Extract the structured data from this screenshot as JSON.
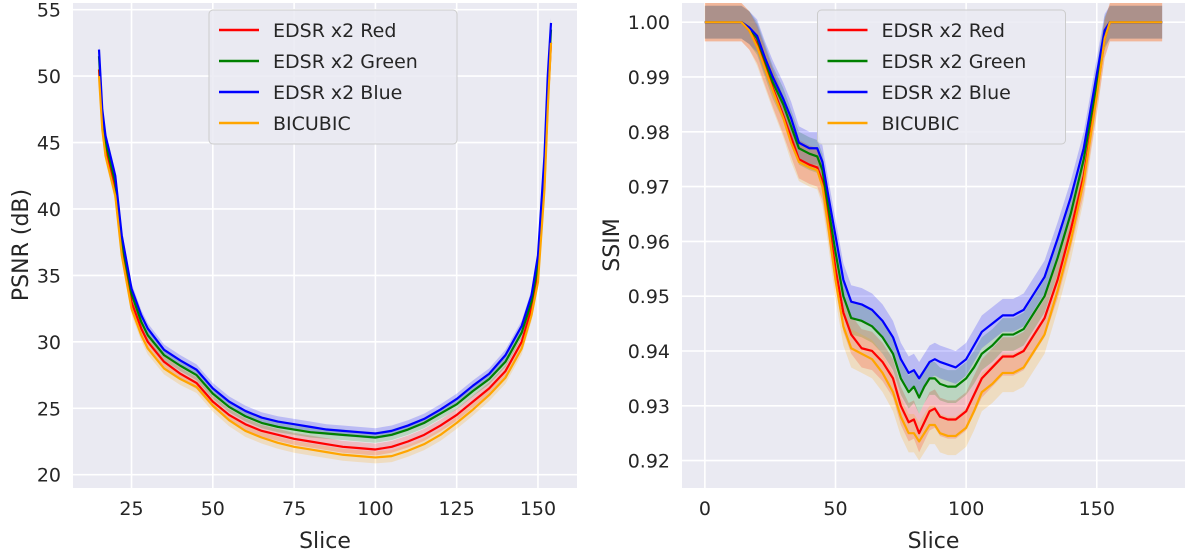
{
  "chart_data": [
    {
      "type": "line",
      "xlabel": "Slice",
      "ylabel": "PSNR (dB)",
      "xlim": [
        7,
        162
      ],
      "ylim": [
        19,
        55.5
      ],
      "xticks": [
        25,
        50,
        75,
        100,
        125,
        150
      ],
      "yticks": [
        20,
        25,
        30,
        35,
        40,
        45,
        50,
        55
      ],
      "grid": true,
      "legend_position": "top-center",
      "series": [
        {
          "name": "EDSR x2 Red",
          "color": "#ff0000",
          "band": 0.45,
          "x": [
            15,
            16,
            17,
            18,
            20,
            22,
            25,
            28,
            30,
            35,
            40,
            45,
            50,
            55,
            60,
            65,
            70,
            75,
            80,
            85,
            90,
            95,
            100,
            105,
            110,
            115,
            120,
            125,
            130,
            135,
            140,
            145,
            148,
            150,
            152,
            153,
            154
          ],
          "y": [
            50.5,
            46.5,
            44.5,
            43.5,
            41.5,
            37,
            33,
            31,
            30,
            28.5,
            27.6,
            26.9,
            25.5,
            24.5,
            23.8,
            23.3,
            23,
            22.7,
            22.5,
            22.3,
            22.1,
            22,
            21.9,
            22.1,
            22.5,
            23,
            23.7,
            24.5,
            25.5,
            26.5,
            27.8,
            30,
            32.5,
            35,
            42,
            48,
            52.5
          ]
        },
        {
          "name": "EDSR x2 Green",
          "color": "#008000",
          "band": 0.4,
          "x": [
            15,
            16,
            17,
            18,
            20,
            22,
            25,
            28,
            30,
            35,
            40,
            45,
            50,
            55,
            60,
            65,
            70,
            75,
            80,
            85,
            90,
            95,
            100,
            105,
            110,
            115,
            120,
            125,
            130,
            135,
            140,
            145,
            148,
            150,
            152,
            153,
            154
          ],
          "y": [
            51.5,
            47,
            45,
            44,
            42,
            37.5,
            33.6,
            31.5,
            30.5,
            29,
            28.2,
            27.5,
            26.1,
            25.1,
            24.4,
            23.9,
            23.6,
            23.4,
            23.2,
            23.1,
            23,
            22.9,
            22.8,
            23,
            23.4,
            23.9,
            24.6,
            25.3,
            26.3,
            27.2,
            28.5,
            30.7,
            33,
            35.8,
            43,
            49,
            53.5
          ]
        },
        {
          "name": "EDSR x2 Blue",
          "color": "#0000ff",
          "band": 0.4,
          "x": [
            15,
            16,
            17,
            18,
            20,
            22,
            25,
            28,
            30,
            35,
            40,
            45,
            50,
            55,
            60,
            65,
            70,
            75,
            80,
            85,
            90,
            95,
            100,
            105,
            110,
            115,
            120,
            125,
            130,
            135,
            140,
            145,
            148,
            150,
            152,
            153,
            154
          ],
          "y": [
            52,
            47.5,
            45.5,
            44.5,
            42.5,
            38,
            34,
            32,
            31,
            29.4,
            28.6,
            27.9,
            26.5,
            25.5,
            24.8,
            24.3,
            24,
            23.8,
            23.6,
            23.4,
            23.3,
            23.2,
            23.1,
            23.3,
            23.7,
            24.2,
            24.9,
            25.7,
            26.7,
            27.6,
            29,
            31.2,
            33.5,
            36.5,
            44,
            50,
            54
          ]
        },
        {
          "name": "BICUBIC",
          "color": "#ffa500",
          "band": 0.45,
          "x": [
            15,
            16,
            17,
            18,
            20,
            22,
            25,
            28,
            30,
            35,
            40,
            45,
            50,
            55,
            60,
            65,
            70,
            75,
            80,
            85,
            90,
            95,
            100,
            105,
            110,
            115,
            120,
            125,
            130,
            135,
            140,
            145,
            148,
            150,
            152,
            153,
            154
          ],
          "y": [
            50,
            46,
            44,
            43,
            41,
            36.5,
            32.5,
            30.5,
            29.5,
            28,
            27.2,
            26.6,
            25.2,
            24.1,
            23.3,
            22.8,
            22.4,
            22.1,
            21.9,
            21.7,
            21.5,
            21.4,
            21.3,
            21.4,
            21.8,
            22.3,
            23,
            23.9,
            24.9,
            26,
            27.3,
            29.5,
            32,
            34.5,
            41.5,
            47.5,
            52.5
          ]
        }
      ]
    },
    {
      "type": "line",
      "xlabel": "Slice",
      "ylabel": "SSIM",
      "xlim": [
        -8.75,
        183.75
      ],
      "ylim": [
        0.915,
        1.0035
      ],
      "xticks": [
        0,
        50,
        100,
        150
      ],
      "yticks": [
        "0.92",
        "0.93",
        "0.94",
        "0.95",
        "0.96",
        "0.97",
        "0.98",
        "0.99",
        "1.00"
      ],
      "grid": true,
      "legend_position": "top-center",
      "series": [
        {
          "name": "EDSR x2 Red",
          "color": "#ff0000",
          "band": 0.0035,
          "x": [
            0,
            5,
            10,
            14,
            17,
            20,
            23,
            26,
            30,
            33,
            36,
            40,
            43,
            45,
            47,
            50,
            53,
            56,
            60,
            64,
            68,
            72,
            75,
            78,
            80,
            82,
            84,
            86,
            88,
            90,
            93,
            96,
            100,
            103,
            106,
            110,
            114,
            118,
            122,
            126,
            130,
            135,
            140,
            145,
            150,
            153,
            155,
            160,
            165,
            170,
            175
          ],
          "y": [
            1,
            1,
            1,
            1,
            0.9985,
            0.996,
            0.992,
            0.988,
            0.983,
            0.979,
            0.975,
            0.974,
            0.9735,
            0.971,
            0.965,
            0.955,
            0.947,
            0.943,
            0.9405,
            0.94,
            0.938,
            0.935,
            0.93,
            0.927,
            0.9275,
            0.925,
            0.927,
            0.929,
            0.9295,
            0.928,
            0.9275,
            0.9275,
            0.929,
            0.932,
            0.935,
            0.937,
            0.939,
            0.939,
            0.94,
            0.943,
            0.946,
            0.953,
            0.962,
            0.972,
            0.987,
            0.997,
            1,
            1,
            1,
            1,
            1
          ]
        },
        {
          "name": "EDSR x2 Green",
          "color": "#008000",
          "band": 0.003,
          "x": [
            0,
            5,
            10,
            14,
            17,
            20,
            23,
            26,
            30,
            33,
            36,
            40,
            43,
            45,
            47,
            50,
            53,
            56,
            60,
            64,
            68,
            72,
            75,
            78,
            80,
            82,
            84,
            86,
            88,
            90,
            93,
            96,
            100,
            103,
            106,
            110,
            114,
            118,
            122,
            126,
            130,
            135,
            140,
            145,
            150,
            153,
            155,
            160,
            165,
            170,
            175
          ],
          "y": [
            1,
            1,
            1,
            1,
            0.999,
            0.997,
            0.993,
            0.989,
            0.985,
            0.981,
            0.977,
            0.976,
            0.9755,
            0.973,
            0.967,
            0.958,
            0.95,
            0.946,
            0.9455,
            0.9445,
            0.9425,
            0.9395,
            0.935,
            0.9325,
            0.9335,
            0.9315,
            0.9335,
            0.935,
            0.935,
            0.934,
            0.9335,
            0.9335,
            0.935,
            0.937,
            0.9395,
            0.941,
            0.943,
            0.943,
            0.944,
            0.947,
            0.95,
            0.957,
            0.965,
            0.975,
            0.989,
            0.998,
            1,
            1,
            1,
            1,
            1
          ]
        },
        {
          "name": "EDSR x2 Blue",
          "color": "#0000ff",
          "band": 0.003,
          "x": [
            0,
            5,
            10,
            14,
            17,
            20,
            23,
            26,
            30,
            33,
            36,
            40,
            43,
            45,
            47,
            50,
            53,
            56,
            60,
            64,
            68,
            72,
            75,
            78,
            80,
            82,
            84,
            86,
            88,
            90,
            93,
            96,
            100,
            103,
            106,
            110,
            114,
            118,
            122,
            126,
            130,
            135,
            140,
            145,
            150,
            153,
            155,
            160,
            165,
            170,
            175
          ],
          "y": [
            1,
            1,
            1,
            1,
            0.999,
            0.9975,
            0.9935,
            0.99,
            0.986,
            0.9825,
            0.978,
            0.977,
            0.977,
            0.9745,
            0.969,
            0.961,
            0.953,
            0.949,
            0.9485,
            0.9475,
            0.9455,
            0.9425,
            0.9385,
            0.936,
            0.9365,
            0.935,
            0.9365,
            0.938,
            0.9385,
            0.938,
            0.9375,
            0.937,
            0.9385,
            0.941,
            0.9435,
            0.945,
            0.9465,
            0.9465,
            0.9475,
            0.9505,
            0.9535,
            0.9605,
            0.968,
            0.977,
            0.9905,
            0.9985,
            1,
            1,
            1,
            1,
            1
          ]
        },
        {
          "name": "BICUBIC",
          "color": "#ffa500",
          "band": 0.0035,
          "x": [
            0,
            5,
            10,
            14,
            17,
            20,
            23,
            26,
            30,
            33,
            36,
            40,
            43,
            45,
            47,
            50,
            53,
            56,
            60,
            64,
            68,
            72,
            75,
            78,
            80,
            82,
            84,
            86,
            88,
            90,
            93,
            96,
            100,
            103,
            106,
            110,
            114,
            118,
            122,
            126,
            130,
            135,
            140,
            145,
            150,
            153,
            155,
            160,
            165,
            170,
            175
          ],
          "y": [
            1,
            1,
            1,
            1,
            0.9985,
            0.9955,
            0.9915,
            0.9875,
            0.9825,
            0.978,
            0.9745,
            0.9735,
            0.973,
            0.97,
            0.9635,
            0.953,
            0.9445,
            0.9405,
            0.9395,
            0.9385,
            0.936,
            0.9325,
            0.928,
            0.925,
            0.925,
            0.9235,
            0.925,
            0.9265,
            0.9265,
            0.925,
            0.9245,
            0.9245,
            0.926,
            0.929,
            0.9325,
            0.934,
            0.936,
            0.936,
            0.937,
            0.94,
            0.943,
            0.951,
            0.96,
            0.971,
            0.9865,
            0.997,
            1,
            1,
            1,
            1,
            1
          ]
        }
      ]
    }
  ]
}
